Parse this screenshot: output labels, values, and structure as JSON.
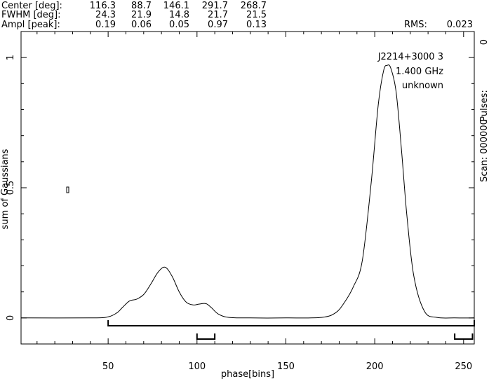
{
  "header": {
    "labels": [
      "Center [deg]:",
      "FWHM  [deg]:",
      "Ampl  [peak]:"
    ],
    "center": [
      "116.3",
      "88.7",
      "146.1",
      "291.7",
      "268.7"
    ],
    "fwhm": [
      "24.3",
      "21.9",
      "14.8",
      "21.7",
      "21.5"
    ],
    "ampl": [
      "0.19",
      "0.06",
      "0.05",
      "0.97",
      "0.13"
    ],
    "rms_label": "RMS:",
    "rms_value": "0.023"
  },
  "annotation": {
    "source": "J2214+3000 3",
    "frequency": "1.400 GHz",
    "status": "unknown"
  },
  "right_axis": {
    "zero_label": "0",
    "pulses_label": "Pulses:",
    "scan_label": "Scan: 000000"
  },
  "chart_data": {
    "type": "line",
    "xlabel": "phase[bins]",
    "ylabel": "sum of Gaussians",
    "xlim": [
      1,
      256
    ],
    "ylim": [
      -0.1,
      1.1
    ],
    "x_ticks": [
      50,
      100,
      150,
      200,
      250
    ],
    "y_ticks": [
      0,
      0.5,
      1
    ],
    "x_tick_labels": [
      "50",
      "100",
      "150",
      "200",
      "250"
    ],
    "y_tick_labels": [
      "0",
      "0.5",
      "1"
    ],
    "grid": false,
    "series": [
      {
        "x": [
          1,
          40,
          50,
          55,
          58,
          62,
          66,
          70,
          74,
          78,
          82,
          86,
          90,
          94,
          98,
          101,
          105,
          108,
          112,
          118,
          130,
          150,
          170,
          178,
          183,
          188,
          193,
          198,
          202,
          205,
          207,
          209,
          212,
          215,
          218,
          222,
          228,
          235,
          245,
          256
        ],
        "y": [
          0,
          0,
          0.004,
          0.02,
          0.04,
          0.065,
          0.072,
          0.09,
          0.13,
          0.175,
          0.195,
          0.16,
          0.1,
          0.06,
          0.05,
          0.053,
          0.055,
          0.04,
          0.015,
          0.002,
          0,
          0,
          0.002,
          0.02,
          0.06,
          0.12,
          0.22,
          0.52,
          0.82,
          0.95,
          0.97,
          0.96,
          0.87,
          0.65,
          0.4,
          0.16,
          0.025,
          0.002,
          0,
          0
        ]
      }
    ],
    "windows": [
      {
        "start": 50,
        "end": 256,
        "level": 1
      },
      {
        "start": 100,
        "end": 110,
        "level": 2
      },
      {
        "start": 245,
        "end": 255,
        "level": 2
      }
    ]
  }
}
